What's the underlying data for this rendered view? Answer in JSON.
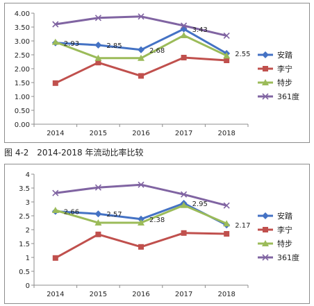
{
  "caption": {
    "figure_no": "图 4-2",
    "text": "2014-2018 年流动比率比较"
  },
  "chart_data": [
    {
      "type": "line",
      "title": "",
      "xlabel": "",
      "ylabel": "",
      "categories": [
        "2014",
        "2015",
        "2016",
        "2017",
        "2018"
      ],
      "y_ticks": [
        "0.00",
        "0.50",
        "1.00",
        "1.50",
        "2.00",
        "2.50",
        "3.00",
        "3.50",
        "4.00"
      ],
      "ylim": [
        0,
        4
      ],
      "grid": "none",
      "legend": "right",
      "series": [
        {
          "name": "安踏",
          "values": [
            2.93,
            2.85,
            2.68,
            3.43,
            2.55
          ],
          "color": "#4472C4",
          "marker": "diamond",
          "labels": [
            "2.93",
            "2.85",
            "2.68",
            "3.43",
            "2.55"
          ]
        },
        {
          "name": "李宁",
          "values": [
            1.48,
            2.22,
            1.74,
            2.4,
            2.3
          ],
          "color": "#C0504D",
          "marker": "square",
          "labels": [
            "",
            "",
            "",
            "",
            ""
          ]
        },
        {
          "name": "特步",
          "values": [
            2.96,
            2.38,
            2.38,
            3.2,
            2.47
          ],
          "color": "#9BBB59",
          "marker": "triangle",
          "labels": [
            "",
            "",
            "",
            "",
            ""
          ]
        },
        {
          "name": "361度",
          "values": [
            3.6,
            3.83,
            3.88,
            3.55,
            3.19
          ],
          "color": "#8064A2",
          "marker": "x",
          "labels": [
            "",
            "",
            "",
            "",
            ""
          ]
        }
      ]
    },
    {
      "type": "line",
      "title": "",
      "xlabel": "",
      "ylabel": "",
      "categories": [
        "2014",
        "2015",
        "2016",
        "2017",
        "2018"
      ],
      "y_ticks": [
        "0",
        "0.5",
        "1",
        "1.5",
        "2",
        "2.5",
        "3",
        "3.5",
        "4"
      ],
      "ylim": [
        0,
        4
      ],
      "grid": "none",
      "legend": "right",
      "series": [
        {
          "name": "安踏",
          "values": [
            2.66,
            2.57,
            2.38,
            2.95,
            2.17
          ],
          "color": "#4472C4",
          "marker": "diamond",
          "labels": [
            "2.66",
            "2.57",
            "2.38",
            "2.95",
            "2.17"
          ]
        },
        {
          "name": "李宁",
          "values": [
            0.98,
            1.83,
            1.38,
            1.88,
            1.85
          ],
          "color": "#C0504D",
          "marker": "square",
          "labels": [
            "",
            "",
            "",
            "",
            ""
          ]
        },
        {
          "name": "特步",
          "values": [
            2.7,
            2.25,
            2.25,
            2.88,
            2.22
          ],
          "color": "#9BBB59",
          "marker": "triangle",
          "labels": [
            "",
            "",
            "",
            "",
            ""
          ]
        },
        {
          "name": "361度",
          "values": [
            3.32,
            3.52,
            3.62,
            3.27,
            2.87
          ],
          "color": "#8064A2",
          "marker": "x",
          "labels": [
            "",
            "",
            "",
            "",
            ""
          ]
        }
      ]
    }
  ]
}
